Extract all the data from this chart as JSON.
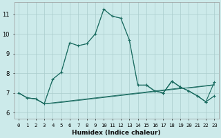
{
  "xlabel": "Humidex (Indice chaleur)",
  "background_color": "#cceaea",
  "grid_color": "#aacccc",
  "line_color": "#1a6b60",
  "x_ticks": [
    0,
    1,
    2,
    3,
    4,
    5,
    6,
    7,
    8,
    9,
    10,
    11,
    12,
    13,
    14,
    15,
    16,
    17,
    18,
    19,
    20,
    21,
    22,
    23
  ],
  "y_ticks": [
    6,
    7,
    8,
    9,
    10,
    11
  ],
  "xlim": [
    -0.5,
    23.5
  ],
  "ylim": [
    5.7,
    11.6
  ],
  "series_main_x": [
    0,
    1,
    2,
    3,
    4,
    5,
    6,
    7,
    8,
    9,
    10,
    11,
    12,
    13,
    14,
    15,
    16,
    17,
    18,
    19,
    20,
    21,
    22,
    23
  ],
  "series_main_y": [
    7.0,
    6.75,
    6.7,
    6.45,
    7.7,
    8.05,
    9.55,
    9.4,
    9.5,
    10.0,
    11.25,
    10.9,
    10.8,
    9.7,
    7.4,
    7.4,
    7.1,
    7.0,
    7.6,
    7.3,
    7.1,
    6.85,
    6.55,
    6.85
  ],
  "series_dotted_x": [
    0,
    1,
    2,
    3,
    4,
    5,
    6,
    7,
    8,
    9,
    10,
    11,
    12,
    13,
    14,
    15,
    16,
    17,
    18,
    19,
    20,
    21,
    22,
    23
  ],
  "series_dotted_y": [
    7.0,
    6.75,
    6.7,
    6.45,
    7.7,
    8.05,
    9.55,
    9.4,
    9.5,
    10.0,
    11.25,
    10.9,
    10.8,
    9.7,
    7.4,
    7.4,
    7.1,
    7.0,
    7.6,
    7.3,
    7.1,
    6.85,
    6.55,
    6.85
  ],
  "series_flat1_x": [
    0,
    1,
    2,
    3,
    4,
    5,
    6,
    7,
    8,
    9,
    10,
    11,
    12,
    13,
    14,
    15,
    16,
    17,
    18,
    19,
    20,
    21,
    22,
    23
  ],
  "series_flat1_y": [
    7.0,
    6.75,
    6.7,
    6.45,
    6.5,
    6.55,
    6.6,
    6.65,
    6.7,
    6.75,
    6.8,
    6.85,
    6.9,
    6.95,
    7.0,
    7.05,
    7.1,
    7.15,
    7.2,
    7.25,
    7.25,
    7.3,
    7.35,
    7.4
  ],
  "series_flat2_x": [
    0,
    1,
    2,
    3,
    4,
    5,
    6,
    7,
    8,
    9,
    10,
    11,
    12,
    13,
    14,
    15,
    16,
    17,
    18,
    19,
    20,
    21,
    22,
    23
  ],
  "series_flat2_y": [
    7.0,
    6.75,
    6.7,
    6.45,
    6.48,
    6.52,
    6.57,
    6.62,
    6.67,
    6.72,
    6.77,
    6.82,
    6.87,
    6.92,
    6.97,
    7.02,
    7.07,
    7.12,
    7.17,
    7.22,
    7.27,
    7.32,
    7.37,
    7.42
  ],
  "series_right_x": [
    0,
    15,
    16,
    17,
    18,
    19,
    20,
    21,
    22,
    23
  ],
  "series_right_y": [
    7.0,
    7.4,
    7.1,
    7.0,
    7.6,
    7.3,
    7.1,
    6.85,
    6.55,
    7.55
  ]
}
